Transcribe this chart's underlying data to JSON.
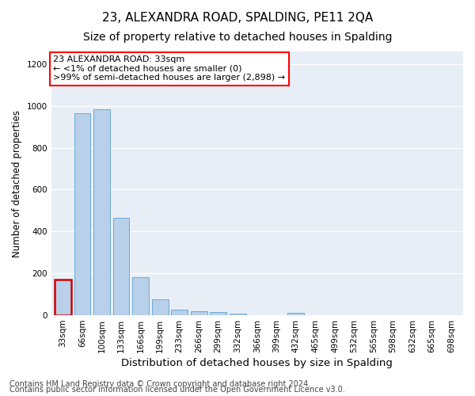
{
  "title1": "23, ALEXANDRA ROAD, SPALDING, PE11 2QA",
  "title2": "Size of property relative to detached houses in Spalding",
  "xlabel": "Distribution of detached houses by size in Spalding",
  "ylabel": "Number of detached properties",
  "footer1": "Contains HM Land Registry data © Crown copyright and database right 2024.",
  "footer2": "Contains public sector information licensed under the Open Government Licence v3.0.",
  "annotation_title": "23 ALEXANDRA ROAD: 33sqm",
  "annotation_line2": "← <1% of detached houses are smaller (0)",
  "annotation_line3": ">99% of semi-detached houses are larger (2,898) →",
  "bar_labels": [
    "33sqm",
    "66sqm",
    "100sqm",
    "133sqm",
    "166sqm",
    "199sqm",
    "233sqm",
    "266sqm",
    "299sqm",
    "332sqm",
    "366sqm",
    "399sqm",
    "432sqm",
    "465sqm",
    "499sqm",
    "532sqm",
    "565sqm",
    "598sqm",
    "632sqm",
    "665sqm",
    "698sqm"
  ],
  "bar_values": [
    170,
    965,
    985,
    465,
    182,
    75,
    27,
    20,
    15,
    8,
    0,
    0,
    12,
    0,
    0,
    0,
    0,
    0,
    0,
    0,
    0
  ],
  "bar_color": "#b8d0ea",
  "bar_edge_color": "#6aaad4",
  "highlight_index": 0,
  "highlight_bar_color": "#cc0000",
  "background_color": "#e8eef6",
  "ylim": [
    0,
    1260
  ],
  "yticks": [
    0,
    200,
    400,
    600,
    800,
    1000,
    1200
  ],
  "grid_color": "#ffffff",
  "title1_fontsize": 11,
  "title2_fontsize": 10,
  "xlabel_fontsize": 9.5,
  "ylabel_fontsize": 8.5,
  "tick_fontsize": 7.5,
  "annotation_fontsize": 8,
  "footer_fontsize": 7
}
